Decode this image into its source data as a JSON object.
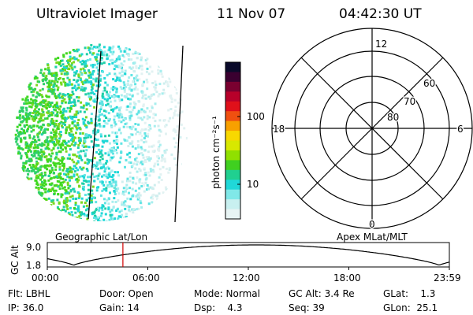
{
  "header": {
    "instrument": "Ultraviolet Imager",
    "date": "11 Nov 07",
    "time": "04:42:30 UT"
  },
  "colorbar": {
    "unit_label": "photon cm⁻²s⁻¹",
    "ticks": [
      "100",
      "10"
    ],
    "colors": [
      "#0a0a2a",
      "#3a0030",
      "#7a0030",
      "#b8002a",
      "#e0101a",
      "#f05010",
      "#f8a000",
      "#f8d800",
      "#d8e800",
      "#90e000",
      "#40d020",
      "#20d090",
      "#20d8d8",
      "#80e8e8",
      "#c8f0f0",
      "#e8f4f4"
    ]
  },
  "polar_plot": {
    "mlt_labels": {
      "top": "12",
      "left": "18",
      "right": "6",
      "bottom": "0"
    },
    "lat_labels": [
      "60",
      "70",
      "80"
    ]
  },
  "timeline": {
    "left_title": "Geographic Lat/Lon",
    "right_title": "Apex MLat/MLT",
    "axis_label": "GC Alt",
    "y_ticks": [
      "9.0",
      "1.8"
    ],
    "x_ticks": [
      "00:00",
      "06:00",
      "12:00",
      "18:00",
      "23:59"
    ],
    "current_time_fraction": 0.188,
    "marker_color": "#d00000"
  },
  "status": {
    "filter": "Flt: LBHL",
    "ip": "IP: 36.0",
    "door": "Door: Open",
    "gain": "Gain: 14",
    "mode": "Mode: Normal",
    "dsp": "Dsp:    4.3",
    "gc_alt": "GC Alt: 3.4 Re",
    "seq": "Seq: 39",
    "glat": "GLat:    1.3",
    "glon": "GLon:  25.1"
  }
}
